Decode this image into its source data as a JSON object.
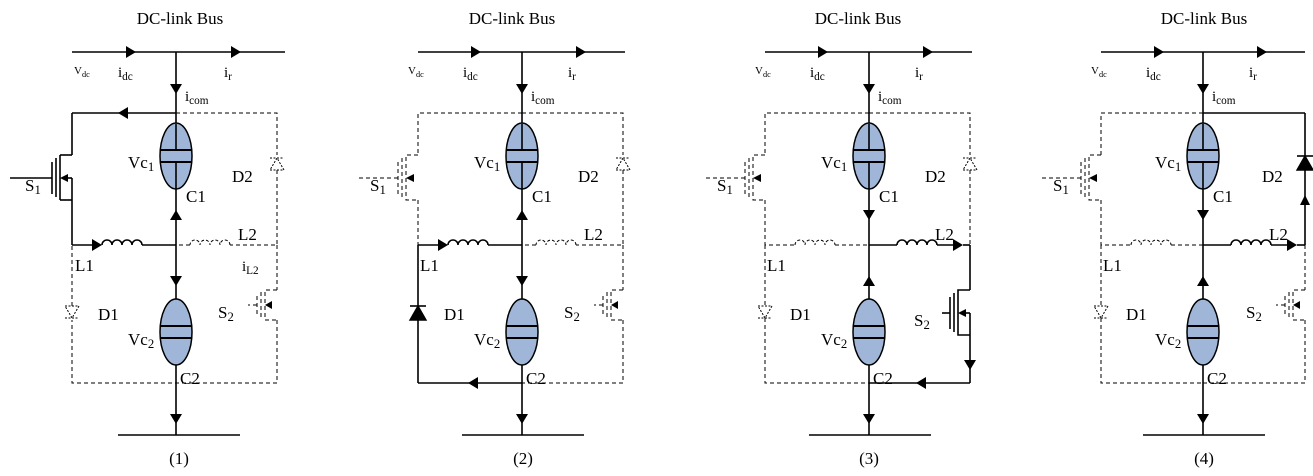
{
  "panels": [
    {
      "title": "DC-link Bus",
      "caption": "(1)",
      "v_dc": "Vdc",
      "i_dc": "idc",
      "i_r": "ir",
      "i_com": "icom",
      "vc1": "Vc1",
      "vc2": "Vc2",
      "c1": "C1",
      "c2": "C2",
      "s1": "S1",
      "s2": "S2",
      "d1": "D1",
      "d2": "D2",
      "l1": "L1",
      "l2": "L2",
      "i_l2": "iL2"
    },
    {
      "title": "DC-link Bus",
      "caption": "(2)",
      "v_dc": "Vdc",
      "i_dc": "idc",
      "i_r": "ir",
      "i_com": "icom",
      "vc1": "Vc1",
      "vc2": "Vc2",
      "c1": "C1",
      "c2": "C2",
      "s1": "S1",
      "s2": "S2",
      "d1": "D1",
      "d2": "D2",
      "l1": "L1",
      "l2": "L2"
    },
    {
      "title": "DC-link Bus",
      "caption": "(3)",
      "v_dc": "Vdc",
      "i_dc": "idc",
      "i_r": "ir",
      "i_com": "icom",
      "vc1": "Vc1",
      "vc2": "Vc2",
      "c1": "C1",
      "c2": "C2",
      "s1": "S1",
      "s2": "S2",
      "d1": "D1",
      "d2": "D2",
      "l1": "L1",
      "l2": "L2"
    },
    {
      "title": "DC-link Bus",
      "caption": "(4)",
      "v_dc": "Vdc",
      "i_dc": "idc",
      "i_r": "ir",
      "i_com": "icom",
      "vc1": "Vc1",
      "vc2": "Vc2",
      "c1": "C1",
      "c2": "C2",
      "s1": "S1",
      "s2": "S2",
      "d1": "D1",
      "d2": "D2",
      "l1": "L1",
      "l2": "L2"
    }
  ]
}
